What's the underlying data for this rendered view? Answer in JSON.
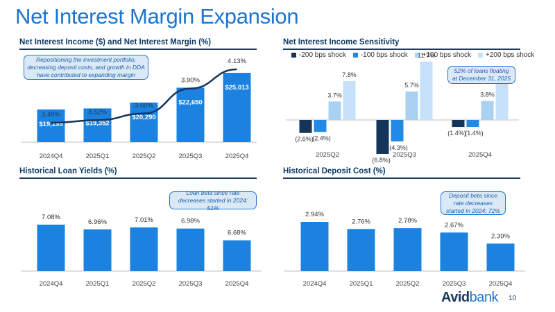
{
  "page": {
    "title": "Net Interest Margin Expansion",
    "logo_bold": "Avid",
    "logo_light": "bank",
    "page_number": "10"
  },
  "colors": {
    "bar": "#1b82e0",
    "line": "#15345a",
    "shock_m200": "#15345a",
    "shock_m100": "#2189e6",
    "shock_p100": "#a9d1f1",
    "shock_p200": "#c6e1f9"
  },
  "callouts": {
    "nim": "Repositioning the investment portfolio, decreasing deposit costs, and growth in DDA have contributed to expanding margin",
    "sensitivity": "52% of loans floating at December 31, 2025",
    "loan_beta": "Loan beta since rate decreases started in 2024: 51%",
    "deposit_beta": "Deposit beta since rate decreases started in 2024: 72%"
  },
  "chart_data": [
    {
      "id": "nii",
      "type": "bar",
      "title": "Net Interest Income ($) and Net Interest Margin (%)",
      "categories": [
        "2024Q4",
        "2025Q1",
        "2025Q2",
        "2025Q3",
        "2025Q4"
      ],
      "series": [
        {
          "name": "Net Interest Income ($)",
          "type": "bar",
          "values": [
            19199,
            19352,
            20290,
            22650,
            25013
          ],
          "labels": [
            "$19,199",
            "$19,352",
            "$20,290",
            "$22,650",
            "$25,013"
          ]
        },
        {
          "name": "Net Interest Margin (%)",
          "type": "line",
          "values": [
            3.49,
            3.52,
            3.6,
            3.9,
            4.13
          ],
          "labels": [
            "3.49%",
            "3.52%",
            "3.60%",
            "3.90%",
            "4.13%"
          ]
        }
      ]
    },
    {
      "id": "sensitivity",
      "type": "bar",
      "title": "Net Interest Income Sensitivity",
      "categories": [
        "2025Q2",
        "2025Q3",
        "2025Q4"
      ],
      "series": [
        {
          "name": "-200 bps shock",
          "values": [
            -2.6,
            -6.8,
            -1.4
          ],
          "labels": [
            "(2.6%)",
            "(6.8%)",
            "(1.4%)"
          ]
        },
        {
          "name": "-100 bps shock",
          "values": [
            -2.4,
            -4.3,
            -1.4
          ],
          "labels": [
            "(2.4%)",
            "(4.3%)",
            "(1.4%)"
          ]
        },
        {
          "name": "+100 bps shock",
          "values": [
            3.7,
            5.7,
            3.8
          ],
          "labels": [
            "3.7%",
            "5.7%",
            "3.8%"
          ]
        },
        {
          "name": "+200 bps shock",
          "values": [
            7.8,
            11.7,
            8.0
          ],
          "labels": [
            "7.8%",
            "11.7%",
            "8.0%"
          ]
        }
      ],
      "legend": "top"
    },
    {
      "id": "loan",
      "type": "bar",
      "title": "Historical Loan Yields (%)",
      "categories": [
        "2024Q4",
        "2025Q1",
        "2025Q2",
        "2025Q3",
        "2025Q4"
      ],
      "values": [
        7.08,
        6.96,
        7.01,
        6.98,
        6.68
      ],
      "labels": [
        "7.08%",
        "6.96%",
        "7.01%",
        "6.98%",
        "6.68%"
      ]
    },
    {
      "id": "deposit",
      "type": "bar",
      "title": "Historical Deposit Cost (%)",
      "categories": [
        "2024Q4",
        "2025Q1",
        "2025Q2",
        "2025Q3",
        "2025Q4"
      ],
      "values": [
        2.94,
        2.76,
        2.78,
        2.67,
        2.39
      ],
      "labels": [
        "2.94%",
        "2.76%",
        "2.78%",
        "2.67%",
        "2.39%"
      ]
    }
  ]
}
